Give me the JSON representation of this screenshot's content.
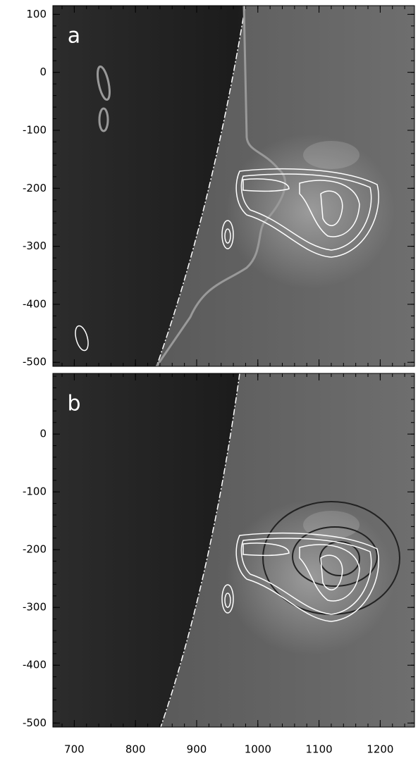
{
  "chart_data": [
    {
      "type": "image",
      "label": "a",
      "xlim": [
        665,
        1256
      ],
      "ylim": [
        -507,
        115
      ],
      "xticks": [
        700,
        800,
        900,
        1000,
        1100,
        1200
      ],
      "yticks": [
        -500,
        -400,
        -300,
        -200,
        -100,
        0,
        100
      ]
    },
    {
      "type": "image",
      "label": "b",
      "xlim": [
        665,
        1256
      ],
      "ylim": [
        -507,
        105
      ],
      "xticks": [
        700,
        800,
        900,
        1000,
        1100,
        1200
      ],
      "yticks": [
        -500,
        -400,
        -300,
        -200,
        -100,
        0
      ]
    }
  ]
}
